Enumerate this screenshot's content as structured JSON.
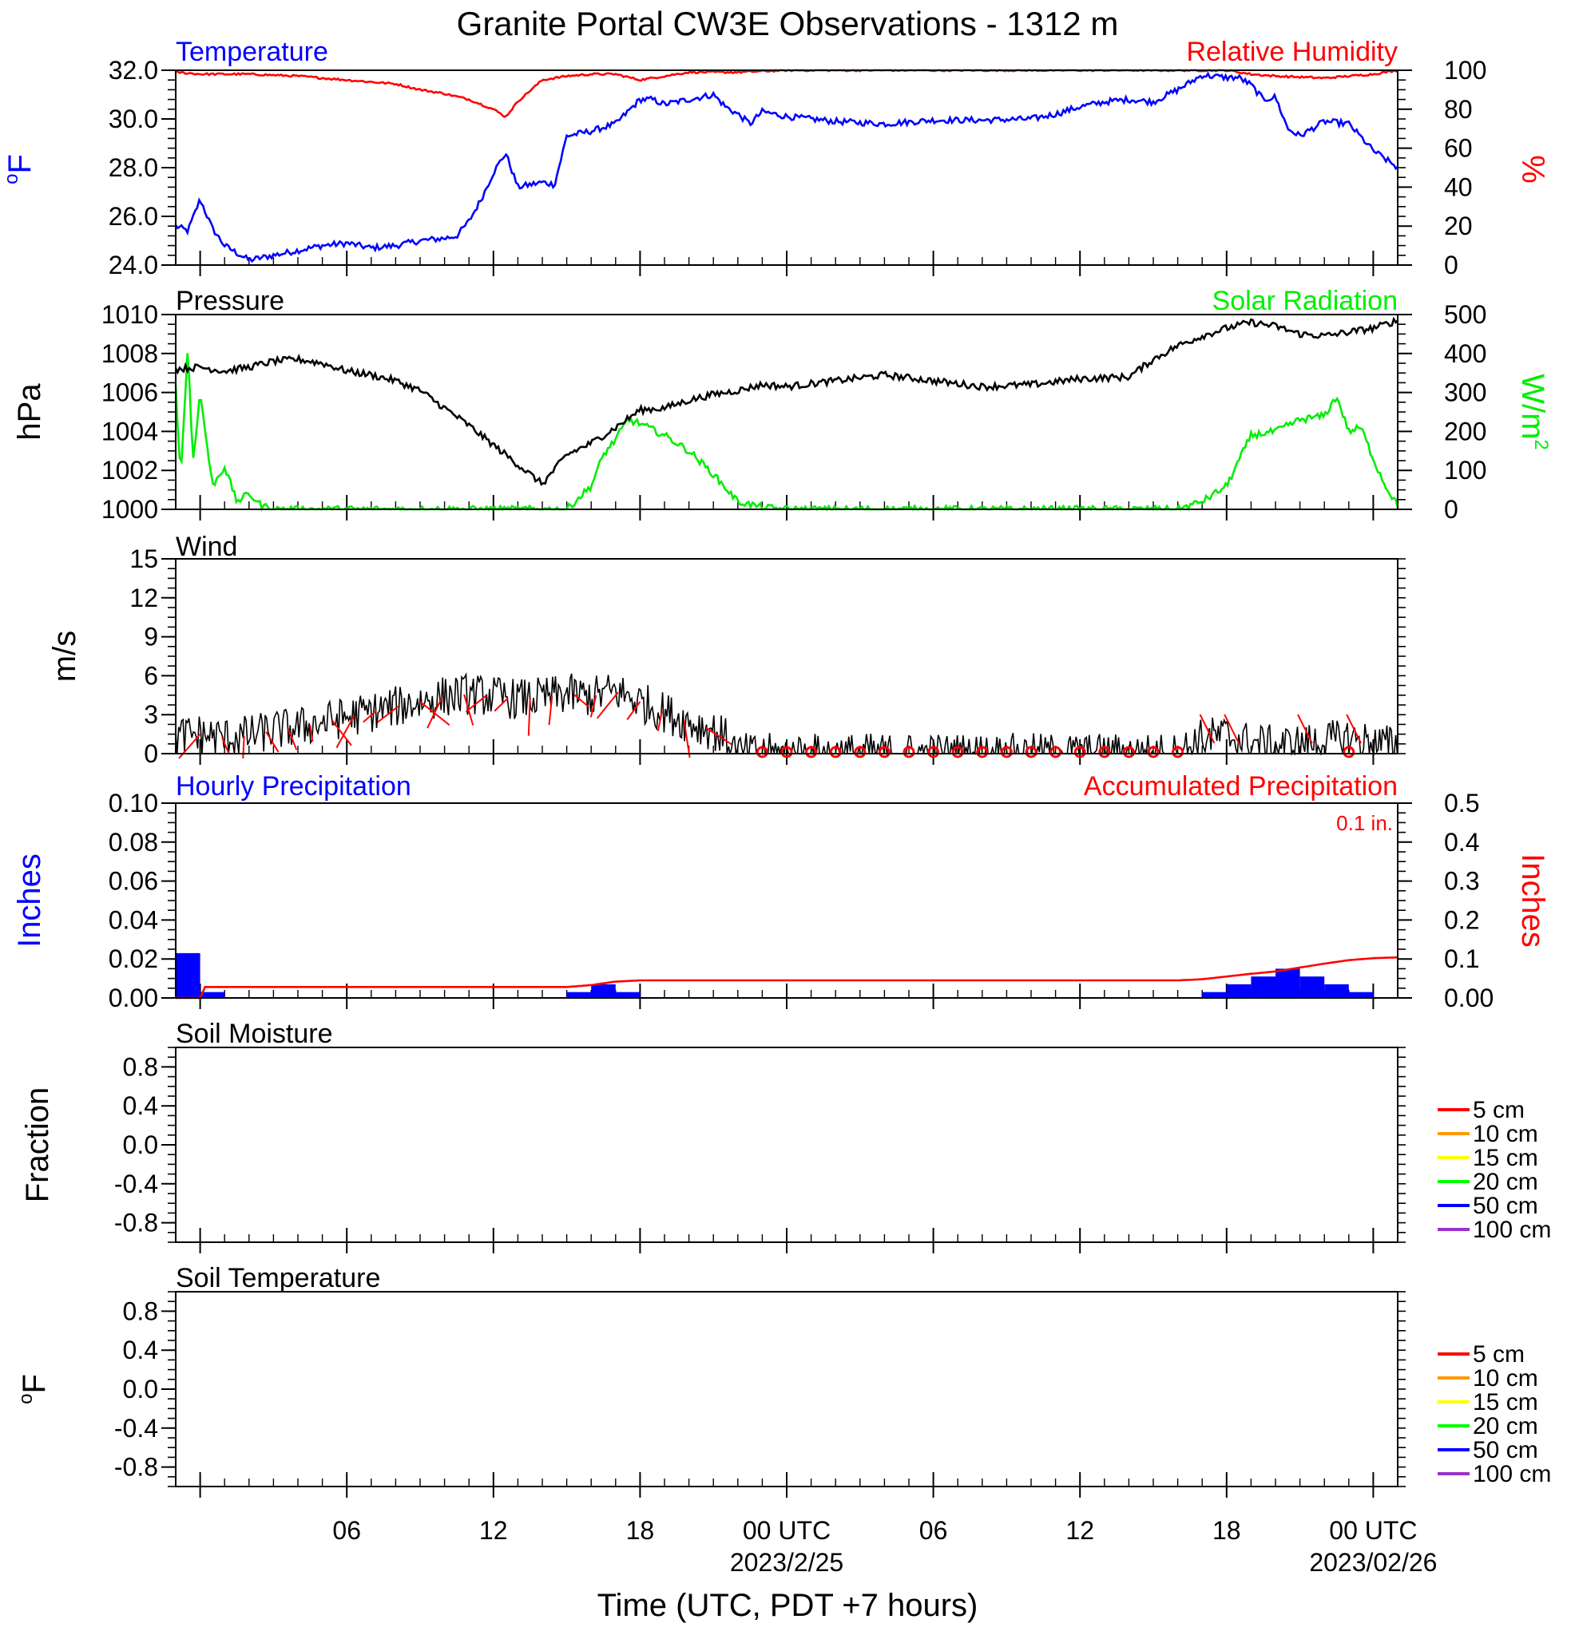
{
  "title": "Granite Portal CW3E Observations - 1312 m",
  "x_axis": {
    "label": "Time (UTC, PDT +7 hours)",
    "ticks": [
      {
        "h": 6,
        "label": "06",
        "sub": ""
      },
      {
        "h": 12,
        "label": "12",
        "sub": ""
      },
      {
        "h": 18,
        "label": "18",
        "sub": ""
      },
      {
        "h": 24,
        "label": "00 UTC",
        "sub": "2023/2/25"
      },
      {
        "h": 30,
        "label": "06",
        "sub": ""
      },
      {
        "h": 36,
        "label": "12",
        "sub": ""
      },
      {
        "h": 42,
        "label": "18",
        "sub": ""
      },
      {
        "h": 48,
        "label": "00 UTC",
        "sub": "2023/02/26"
      }
    ]
  },
  "colors": {
    "temperature": "#0000ff",
    "humidity": "#ff0000",
    "pressure": "#000000",
    "solar": "#00ee00",
    "wind": "#000000",
    "wind_barb": "#ff0000",
    "hourly_precip": "#0000ff",
    "accum_precip": "#ff0000",
    "soil_5": "#ff0000",
    "soil_10": "#ff9900",
    "soil_15": "#ffff00",
    "soil_20": "#00ff00",
    "soil_50": "#0000ff",
    "soil_100": "#9933cc"
  },
  "chart_data": [
    {
      "type": "line",
      "panel": "temperature-humidity",
      "left_title": "Temperature",
      "right_title": "Relative Humidity",
      "left_ylabel": "oF",
      "right_ylabel": "%",
      "x_range_hours": [
        -1,
        49
      ],
      "ylim_left": [
        24,
        32
      ],
      "ylim_right": [
        0,
        100
      ],
      "left_ticks": [
        "24.0",
        "26.0",
        "28.0",
        "30.0",
        "32.0"
      ],
      "right_ticks": [
        "0",
        "20",
        "40",
        "60",
        "80",
        "100"
      ],
      "series": [
        {
          "name": "Temperature",
          "axis": "left",
          "x": [
            -1,
            -0.5,
            0,
            0.5,
            1,
            1.5,
            2,
            3,
            4,
            5,
            6,
            7,
            8,
            9,
            10,
            10.5,
            11,
            11.5,
            12,
            12.5,
            13,
            14,
            14.5,
            15,
            16,
            17,
            18,
            18.5,
            19,
            20,
            21,
            21.5,
            22,
            22.5,
            23,
            24,
            26,
            28,
            30,
            32,
            34,
            35,
            36,
            37,
            38,
            39,
            40,
            41,
            42,
            42.5,
            43,
            43.5,
            44,
            44.5,
            45,
            46,
            47,
            48,
            49
          ],
          "y": [
            25.6,
            25.4,
            26.7,
            25.5,
            24.8,
            24.5,
            24.2,
            24.4,
            24.6,
            24.8,
            24.9,
            24.7,
            24.8,
            25.0,
            25.1,
            25.2,
            25.8,
            26.7,
            27.8,
            28.6,
            27.2,
            27.4,
            27.3,
            29.3,
            29.5,
            29.8,
            30.8,
            30.8,
            30.6,
            30.8,
            31.0,
            30.5,
            30.2,
            29.8,
            30.3,
            30.1,
            29.9,
            29.8,
            29.95,
            29.95,
            30.0,
            30.2,
            30.5,
            30.7,
            30.8,
            30.7,
            31.2,
            31.8,
            31.7,
            31.7,
            31.4,
            30.8,
            30.9,
            29.6,
            29.3,
            29.9,
            29.8,
            28.7,
            28.0
          ]
        },
        {
          "name": "Relative Humidity",
          "axis": "right",
          "x": [
            -1,
            0,
            2,
            4,
            6,
            8,
            9,
            10,
            11,
            12,
            12.5,
            13,
            14,
            15,
            16,
            17,
            18,
            19,
            20,
            22,
            24,
            30,
            36,
            42,
            43,
            44,
            46,
            48,
            49
          ],
          "y": [
            99,
            98,
            98,
            97,
            95,
            93,
            90,
            88,
            85,
            80,
            76,
            84,
            95,
            97,
            98,
            98,
            95,
            97,
            99,
            99,
            100,
            100,
            100,
            100,
            98,
            97,
            96,
            98,
            100
          ]
        }
      ]
    },
    {
      "type": "line",
      "panel": "pressure-solar",
      "left_title": "Pressure",
      "right_title": "Solar Radiation",
      "left_ylabel": "hPa",
      "right_ylabel": "W/m2",
      "x_range_hours": [
        -1,
        49
      ],
      "ylim_left": [
        1000,
        1010
      ],
      "ylim_right": [
        0,
        500
      ],
      "left_ticks": [
        "1000",
        "1002",
        "1004",
        "1006",
        "1008",
        "1010"
      ],
      "right_ticks": [
        "0",
        "100",
        "200",
        "300",
        "400",
        "500"
      ],
      "series": [
        {
          "name": "Pressure",
          "axis": "left",
          "x": [
            -1,
            0,
            1,
            2,
            3,
            4,
            5,
            6,
            7,
            8,
            9,
            10,
            11,
            12,
            13,
            14,
            15,
            16,
            17,
            18,
            19,
            20,
            21,
            22,
            23,
            24,
            26,
            28,
            30,
            32,
            34,
            36,
            38,
            39,
            40,
            41,
            42,
            43,
            44,
            45,
            46,
            47,
            48,
            49
          ],
          "y": [
            1007.2,
            1007.3,
            1007.1,
            1007.3,
            1007.6,
            1007.7,
            1007.5,
            1007.1,
            1006.9,
            1006.6,
            1006.1,
            1005.2,
            1004.3,
            1003.3,
            1002.3,
            1001.3,
            1002.8,
            1003.4,
            1004.2,
            1005.1,
            1005.2,
            1005.6,
            1005.9,
            1006.1,
            1006.4,
            1006.3,
            1006.6,
            1006.9,
            1006.6,
            1006.3,
            1006.4,
            1006.7,
            1006.8,
            1007.7,
            1008.4,
            1008.9,
            1009.3,
            1009.6,
            1009.4,
            1009.0,
            1008.9,
            1009.1,
            1009.3,
            1009.7
          ]
        },
        {
          "name": "Solar Radiation",
          "axis": "right",
          "x": [
            -1,
            -0.8,
            -0.5,
            -0.3,
            0,
            0.5,
            1,
            1.5,
            2,
            2.5,
            3,
            14,
            15,
            16,
            16.5,
            17,
            17.5,
            18,
            19,
            20,
            21,
            22,
            23,
            24,
            40,
            41,
            42,
            43,
            44,
            45,
            46,
            46.5,
            47,
            47.5,
            48,
            48.5,
            49
          ],
          "y": [
            320,
            80,
            420,
            120,
            300,
            60,
            110,
            20,
            40,
            10,
            0,
            0,
            0,
            60,
            140,
            180,
            230,
            220,
            190,
            150,
            90,
            20,
            5,
            0,
            0,
            20,
            60,
            190,
            200,
            230,
            240,
            290,
            200,
            210,
            130,
            60,
            10
          ]
        }
      ]
    },
    {
      "type": "line",
      "panel": "wind",
      "left_title": "Wind",
      "left_ylabel": "m/s",
      "x_range_hours": [
        -1,
        49
      ],
      "ylim_left": [
        0,
        15
      ],
      "left_ticks": [
        "0",
        "3",
        "6",
        "9",
        "12",
        "15"
      ],
      "series": [
        {
          "name": "Wind",
          "x": [
            -1,
            0,
            1,
            2,
            3,
            4,
            5,
            6,
            7,
            8,
            9,
            10,
            11,
            12,
            13,
            14,
            15,
            16,
            17,
            18,
            19,
            20,
            21,
            21.5,
            22,
            40,
            41,
            42,
            43,
            44,
            45,
            46,
            47,
            48,
            49
          ],
          "y": [
            1.3,
            1.5,
            1.2,
            1.4,
            1.8,
            2.0,
            2.4,
            2.8,
            3.2,
            3.6,
            4.0,
            4.4,
            4.6,
            4.4,
            4.2,
            4.3,
            4.6,
            4.4,
            4.8,
            4.0,
            3.2,
            2.4,
            1.8,
            1.2,
            0.0,
            0.0,
            1.2,
            1.4,
            0.8,
            0.6,
            0.7,
            0.9,
            1.2,
            0.8,
            0.6
          ]
        }
      ],
      "calm_markers_x": [
        23,
        24,
        25,
        26,
        27,
        28,
        29,
        30,
        31,
        32,
        33,
        34,
        35,
        36,
        37,
        38,
        39,
        40,
        47
      ]
    },
    {
      "type": "bar",
      "panel": "precipitation",
      "left_title": "Hourly Precipitation",
      "right_title": "Accumulated Precipitation",
      "total_label": "0.1 in.",
      "left_ylabel": "Inches",
      "right_ylabel": "Inches",
      "x_range_hours": [
        -1,
        49
      ],
      "ylim_left": [
        0,
        0.1
      ],
      "ylim_right": [
        0,
        0.5
      ],
      "left_ticks": [
        "0.00",
        "0.02",
        "0.04",
        "0.06",
        "0.08",
        "0.10"
      ],
      "right_ticks": [
        "0.00",
        "0.1",
        "0.2",
        "0.3",
        "0.4",
        "0.5"
      ],
      "bars": {
        "start_hour": [
          -1,
          0,
          15,
          16,
          17,
          18,
          41,
          42,
          43,
          44,
          45,
          46,
          47,
          48
        ],
        "values": [
          0.023,
          0.003,
          0.003,
          0.007,
          0.003,
          0.0,
          0.003,
          0.007,
          0.011,
          0.015,
          0.011,
          0.007,
          0.003,
          0.0
        ]
      },
      "series": [
        {
          "name": "Accumulated Precipitation",
          "axis": "right",
          "x": [
            -1,
            0,
            0.2,
            1,
            15,
            16,
            17,
            18,
            40,
            41,
            42,
            43,
            44,
            45,
            46,
            47,
            48,
            49
          ],
          "y": [
            0.0,
            0.0,
            0.028,
            0.028,
            0.028,
            0.033,
            0.042,
            0.045,
            0.045,
            0.048,
            0.055,
            0.062,
            0.068,
            0.078,
            0.088,
            0.097,
            0.102,
            0.104
          ]
        }
      ]
    },
    {
      "type": "line",
      "panel": "soil-moisture",
      "left_title": "Soil Moisture",
      "left_ylabel": "Fraction",
      "x_range_hours": [
        -1,
        49
      ],
      "ylim_left": [
        -1,
        1
      ],
      "left_ticks": [
        "-0.8",
        "-0.4",
        "0.0",
        "0.4",
        "0.8"
      ],
      "series": []
    },
    {
      "type": "line",
      "panel": "soil-temperature",
      "left_title": "Soil Temperature",
      "left_ylabel": "oF",
      "x_range_hours": [
        -1,
        49
      ],
      "ylim_left": [
        -1,
        1
      ],
      "left_ticks": [
        "-0.8",
        "-0.4",
        "0.0",
        "0.4",
        "0.8"
      ],
      "series": []
    }
  ],
  "soil_legend": [
    "5 cm",
    "10 cm",
    "15 cm",
    "20 cm",
    "50 cm",
    "100 cm"
  ]
}
